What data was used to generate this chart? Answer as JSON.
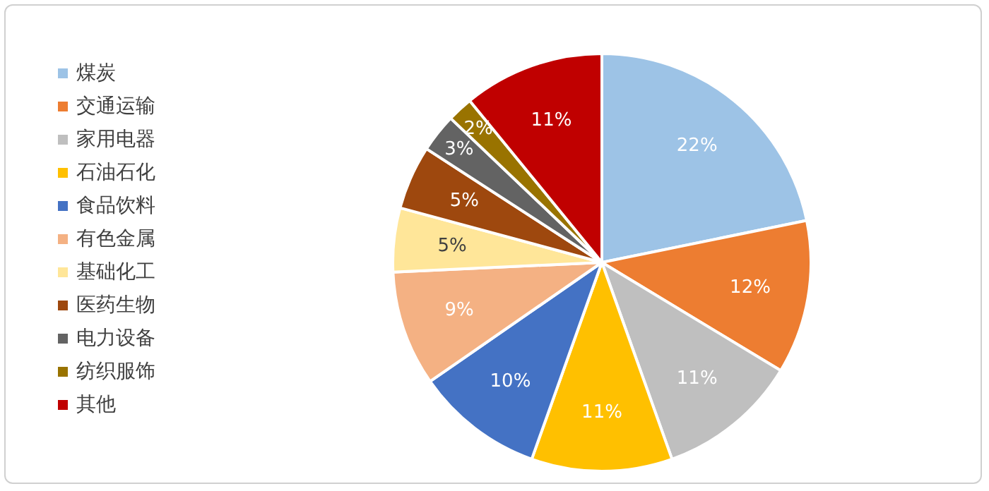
{
  "chart_data": {
    "type": "pie",
    "categories": [
      "煤炭",
      "交通运输",
      "家用电器",
      "石油石化",
      "食品饮料",
      "有色金属",
      "基础化工",
      "医药生物",
      "电力设备",
      "纺织服饰",
      "其他"
    ],
    "values": [
      22,
      12,
      11,
      11,
      10,
      9,
      5,
      5,
      3,
      2,
      11
    ],
    "value_labels": [
      "22%",
      "12%",
      "11%",
      "11%",
      "10%",
      "9%",
      "5%",
      "5%",
      "3%",
      "2%",
      "11%"
    ],
    "colors": [
      "#9dc3e6",
      "#ed7d31",
      "#bfbfbf",
      "#ffc000",
      "#4472c4",
      "#f4b183",
      "#ffe699",
      "#9e480e",
      "#636363",
      "#997300",
      "#c00000"
    ],
    "legend": "left"
  }
}
